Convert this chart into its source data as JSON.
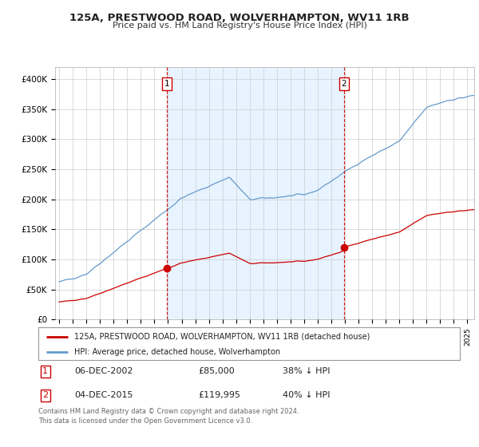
{
  "title": "125A, PRESTWOOD ROAD, WOLVERHAMPTON, WV11 1RB",
  "subtitle": "Price paid vs. HM Land Registry's House Price Index (HPI)",
  "legend_line1": "125A, PRESTWOOD ROAD, WOLVERHAMPTON, WV11 1RB (detached house)",
  "legend_line2": "HPI: Average price, detached house, Wolverhampton",
  "annotation1": {
    "label": "1",
    "date": "06-DEC-2002",
    "price": "£85,000",
    "hpi": "38% ↓ HPI"
  },
  "annotation2": {
    "label": "2",
    "date": "04-DEC-2015",
    "price": "£119,995",
    "hpi": "40% ↓ HPI"
  },
  "footnote": "Contains HM Land Registry data © Crown copyright and database right 2024.\nThis data is licensed under the Open Government Licence v3.0.",
  "red_line_color": "#cc0000",
  "blue_line_color": "#6699cc",
  "shade_color": "#ddeeff",
  "vline_color": "#cc0000",
  "background_color": "#ffffff",
  "grid_color": "#cccccc",
  "ylim_min": 0,
  "ylim_max": 420000,
  "yticks": [
    0,
    50000,
    100000,
    150000,
    200000,
    250000,
    300000,
    350000,
    400000
  ],
  "ytick_labels": [
    "£0",
    "£50K",
    "£100K",
    "£150K",
    "£200K",
    "£250K",
    "£300K",
    "£350K",
    "£400K"
  ],
  "sale1_year": 2002.92,
  "sale1_price": 85000,
  "sale2_year": 2015.92,
  "sale2_price": 119995,
  "xmin": 1995,
  "xmax": 2025
}
